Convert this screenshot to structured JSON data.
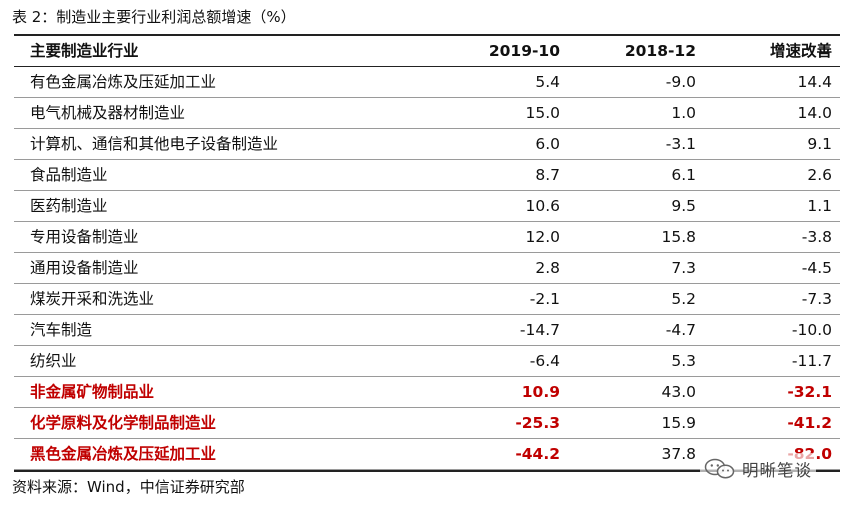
{
  "caption": "表 2：制造业主要行业利润总额增速（%）",
  "header": [
    "主要制造业行业",
    "2019-10",
    "2018-12",
    "增速改善"
  ],
  "rows": [
    {
      "name": "有色金属冶炼及压延加工业",
      "v2019": "5.4",
      "v2018": "-9.0",
      "change": "14.4",
      "highlight": false
    },
    {
      "name": "电气机械及器材制造业",
      "v2019": "15.0",
      "v2018": "1.0",
      "change": "14.0",
      "highlight": false
    },
    {
      "name": "计算机、通信和其他电子设备制造业",
      "v2019": "6.0",
      "v2018": "-3.1",
      "change": "9.1",
      "highlight": false
    },
    {
      "name": "食品制造业",
      "v2019": "8.7",
      "v2018": "6.1",
      "change": "2.6",
      "highlight": false
    },
    {
      "name": "医药制造业",
      "v2019": "10.6",
      "v2018": "9.5",
      "change": "1.1",
      "highlight": false
    },
    {
      "name": "专用设备制造业",
      "v2019": "12.0",
      "v2018": "15.8",
      "change": "-3.8",
      "highlight": false
    },
    {
      "name": "通用设备制造业",
      "v2019": "2.8",
      "v2018": "7.3",
      "change": "-4.5",
      "highlight": false
    },
    {
      "name": "煤炭开采和洗选业",
      "v2019": "-2.1",
      "v2018": "5.2",
      "change": "-7.3",
      "highlight": false
    },
    {
      "name": "汽车制造",
      "v2019": "-14.7",
      "v2018": "-4.7",
      "change": "-10.0",
      "highlight": false
    },
    {
      "name": "纺织业",
      "v2019": "-6.4",
      "v2018": "5.3",
      "change": "-11.7",
      "highlight": false
    },
    {
      "name": "非金属矿物制品业",
      "v2019": "10.9",
      "v2018": "43.0",
      "change": "-32.1",
      "highlight": true
    },
    {
      "name": "化学原料及化学制品制造业",
      "v2019": "-25.3",
      "v2018": "15.9",
      "change": "-41.2",
      "highlight": true
    },
    {
      "name": "黑色金属冶炼及压延加工业",
      "v2019": "-44.2",
      "v2018": "37.8",
      "change": "-82.0",
      "highlight": true
    }
  ],
  "source": "资料来源：Wind，中信证券研究部",
  "watermark": {
    "text": "明晰笔谈",
    "icon": "wechat-icon"
  },
  "colors": {
    "highlight": "#c00000",
    "rule": "#222222",
    "row_border": "#9a9a9a"
  }
}
